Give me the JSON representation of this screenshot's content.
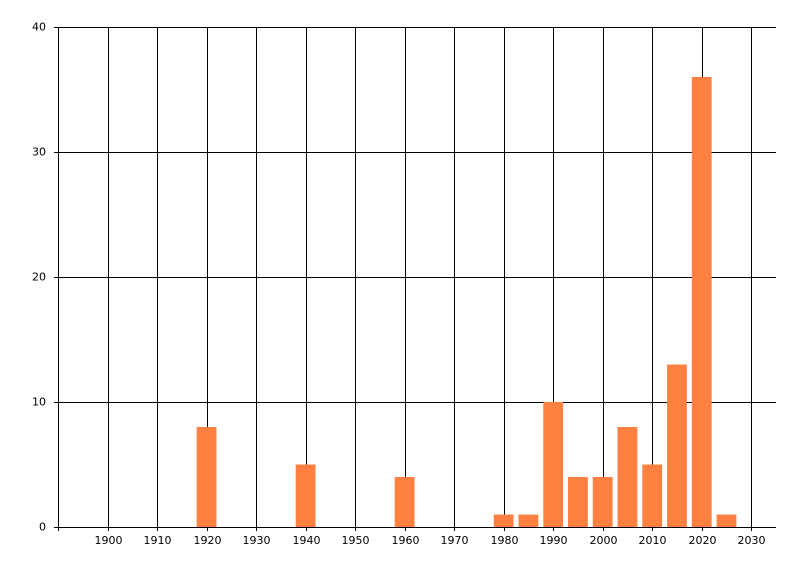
{
  "chart_data": {
    "type": "bar",
    "x": [
      1920,
      1940,
      1960,
      1980,
      1985,
      1990,
      1995,
      2000,
      2005,
      2010,
      2015,
      2020,
      2025
    ],
    "values": [
      8,
      5,
      4,
      1,
      1,
      10,
      4,
      4,
      8,
      5,
      13,
      36,
      1
    ],
    "color": "#ff8040",
    "xlim": [
      1890,
      2035
    ],
    "xticks": [
      1900,
      1910,
      1920,
      1930,
      1940,
      1950,
      1960,
      1970,
      1980,
      1990,
      2000,
      2010,
      2020,
      2030
    ],
    "ylim": [
      0,
      40
    ],
    "yticks": [
      0,
      10,
      20,
      30,
      40
    ],
    "grid": true
  }
}
